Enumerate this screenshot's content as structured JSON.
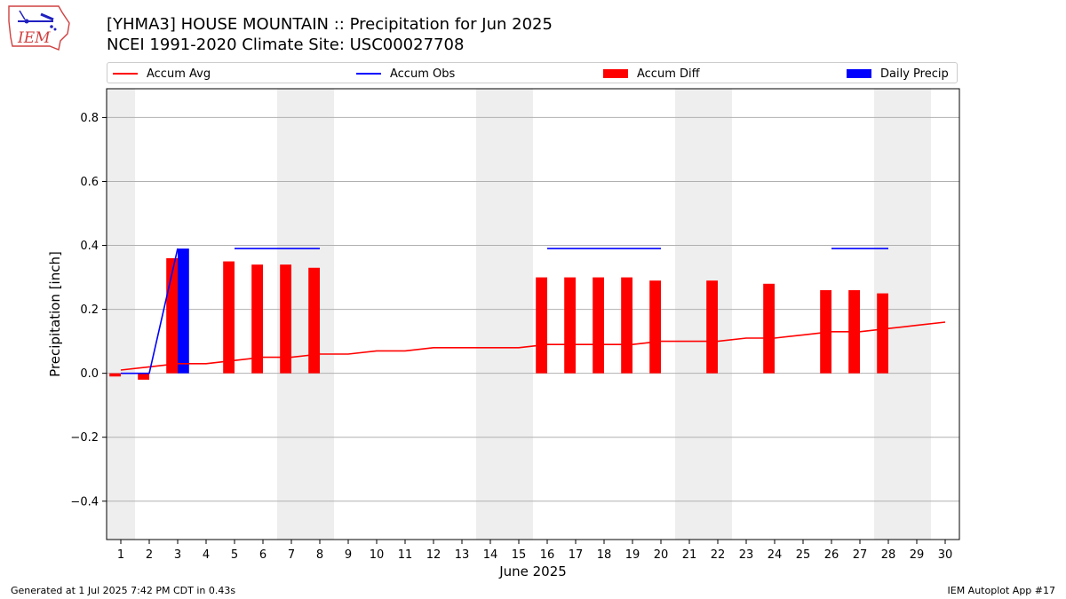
{
  "header": {
    "title_line1": "[YHMA3] HOUSE MOUNTAIN :: Precipitation for Jun 2025",
    "title_line2": "NCEI 1991-2020 Climate Site: USC00027708"
  },
  "logo": {
    "text": "IEM",
    "icon": "iem-iowa-logo-icon"
  },
  "legend": {
    "accum_avg": "Accum Avg",
    "accum_obs": "Accum Obs",
    "accum_diff": "Accum Diff",
    "daily_precip": "Daily Precip"
  },
  "footer": {
    "generated": "Generated at 1 Jul 2025 7:42 PM CDT in 0.43s",
    "app": "IEM Autoplot App #17"
  },
  "colors": {
    "accum_avg": "#ff0000",
    "accum_obs": "#0000ff",
    "accum_diff": "#ff0000",
    "daily_precip": "#0000ff",
    "weekend_shade": "#eeeeee",
    "grid": "#b0b0b0"
  },
  "chart_data": {
    "type": "bar",
    "title": "[YHMA3] HOUSE MOUNTAIN :: Precipitation for Jun 2025",
    "xlabel": "June 2025",
    "ylabel": "Precipitation [inch]",
    "xlim": [
      0.5,
      30.5
    ],
    "ylim": [
      -0.52,
      0.89
    ],
    "yticks": [
      -0.4,
      -0.2,
      0.0,
      0.2,
      0.4,
      0.6,
      0.8
    ],
    "ytick_labels": [
      "−0.4",
      "−0.2",
      "0.0",
      "0.2",
      "0.4",
      "0.6",
      "0.8"
    ],
    "days": [
      1,
      2,
      3,
      4,
      5,
      6,
      7,
      8,
      9,
      10,
      11,
      12,
      13,
      14,
      15,
      16,
      17,
      18,
      19,
      20,
      21,
      22,
      23,
      24,
      25,
      26,
      27,
      28,
      29,
      30
    ],
    "grid": true,
    "legend_position": "top",
    "weekend_shading": [
      [
        0.5,
        1.5
      ],
      [
        6.5,
        8.5
      ],
      [
        13.5,
        15.5
      ],
      [
        20.5,
        22.5
      ],
      [
        27.5,
        29.5
      ]
    ],
    "series": [
      {
        "name": "Accum Avg",
        "type": "line",
        "x": [
          1,
          2,
          3,
          4,
          5,
          6,
          7,
          8,
          9,
          10,
          11,
          12,
          13,
          14,
          15,
          16,
          17,
          18,
          19,
          20,
          21,
          22,
          23,
          24,
          25,
          26,
          27,
          28,
          29,
          30
        ],
        "values": [
          0.01,
          0.02,
          0.03,
          0.03,
          0.04,
          0.05,
          0.05,
          0.06,
          0.06,
          0.07,
          0.07,
          0.08,
          0.08,
          0.08,
          0.08,
          0.09,
          0.09,
          0.09,
          0.09,
          0.1,
          0.1,
          0.1,
          0.11,
          0.11,
          0.12,
          0.13,
          0.13,
          0.14,
          0.15,
          0.16
        ]
      },
      {
        "name": "Accum Obs",
        "type": "line",
        "x": [
          1,
          2,
          3,
          4,
          5,
          6,
          7,
          8,
          9,
          10,
          11,
          12,
          13,
          14,
          15,
          16,
          17,
          18,
          19,
          20,
          21,
          22,
          23,
          24,
          25,
          26,
          27,
          28
        ],
        "values": [
          0.0,
          0.0,
          0.39,
          0.39,
          0.39,
          0.39,
          0.39,
          0.39,
          0.39,
          0.39,
          0.39,
          0.39,
          0.39,
          0.39,
          0.39,
          0.39,
          0.39,
          0.39,
          0.39,
          0.39,
          0.39,
          0.39,
          0.39,
          0.39,
          0.39,
          0.39,
          0.39,
          0.39
        ],
        "visible_ranges": [
          [
            1,
            3
          ],
          [
            5,
            8
          ],
          [
            16,
            20
          ],
          [
            26,
            28
          ]
        ]
      },
      {
        "name": "Accum Diff",
        "type": "bar",
        "x": [
          1,
          2,
          3,
          5,
          6,
          7,
          8,
          16,
          17,
          18,
          19,
          20,
          22,
          24,
          26,
          27,
          28
        ],
        "values": [
          -0.01,
          -0.02,
          0.36,
          0.35,
          0.34,
          0.34,
          0.33,
          0.3,
          0.3,
          0.3,
          0.3,
          0.29,
          0.29,
          0.28,
          0.26,
          0.26,
          0.25
        ]
      },
      {
        "name": "Daily Precip",
        "type": "bar",
        "x": [
          3
        ],
        "values": [
          0.39
        ]
      }
    ]
  }
}
